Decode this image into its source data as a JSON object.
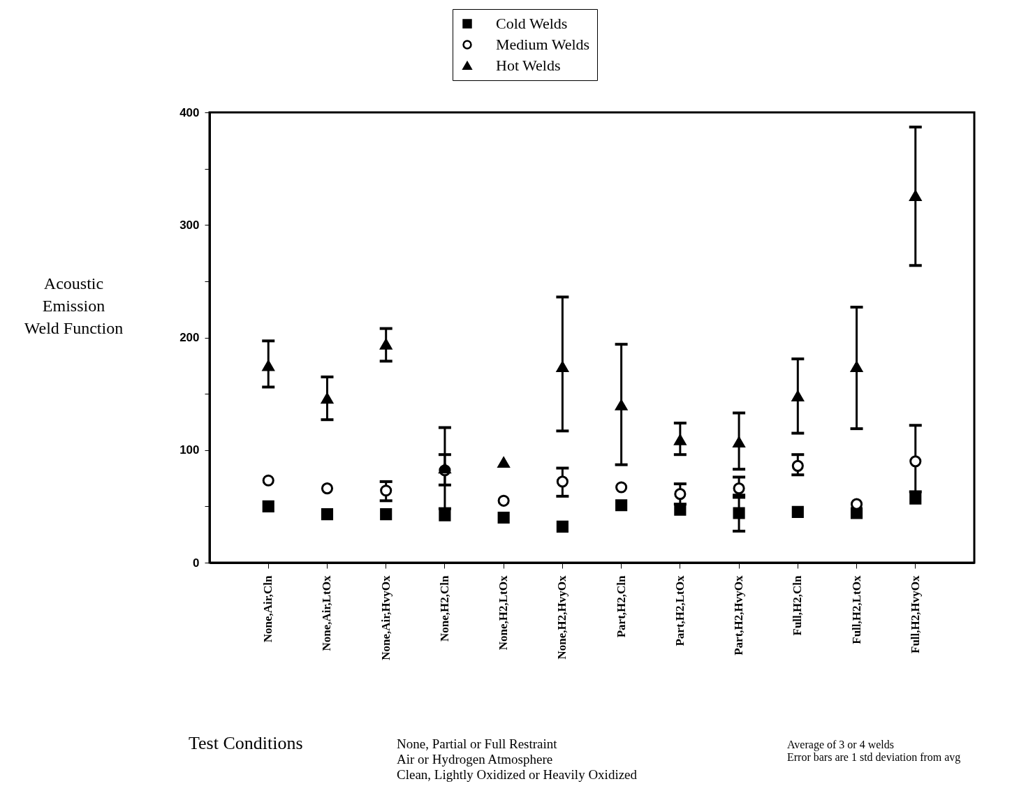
{
  "chart_data": {
    "type": "scatter",
    "ylabel": "Acoustic\nEmission\nWeld Function",
    "categories": [
      "None,Air,Cln",
      "None,Air,LtOx",
      "None,Air,HvyOx",
      "None,H2,Cln",
      "None,H2,LtOx",
      "None,H2,HvyOx",
      "Part,H2,Cln",
      "Part,H2,LtOx",
      "Part,H2,HvyOx",
      "Full,H2,Cln",
      "Full,H2,LtOx",
      "Full,H2,HvyOx"
    ],
    "series": [
      {
        "name": "Cold Welds",
        "color": "#000000",
        "marker": "square",
        "values": [
          50,
          43,
          43,
          42,
          40,
          32,
          51,
          47,
          44,
          45,
          44,
          57
        ],
        "errors": [
          null,
          null,
          null,
          null,
          null,
          null,
          null,
          null,
          [
            28,
            60
          ],
          null,
          null,
          null
        ]
      },
      {
        "name": "Medium Welds",
        "color": "#000000",
        "marker": "circle",
        "values": [
          73,
          66,
          64,
          82,
          55,
          72,
          67,
          61,
          66,
          86,
          52,
          90
        ],
        "errors": [
          null,
          null,
          [
            55,
            72
          ],
          [
            69,
            96
          ],
          null,
          [
            59,
            84
          ],
          null,
          [
            52,
            70
          ],
          [
            58,
            76
          ],
          [
            78,
            96
          ],
          null,
          [
            63,
            122
          ]
        ]
      },
      {
        "name": "Hot Welds",
        "color": "#000000",
        "marker": "triangle",
        "values": [
          175,
          146,
          194,
          84,
          89,
          174,
          140,
          109,
          107,
          148,
          174,
          326
        ],
        "errors": [
          [
            156,
            197
          ],
          [
            127,
            165
          ],
          [
            179,
            208
          ],
          [
            48,
            120
          ],
          null,
          [
            117,
            236
          ],
          [
            87,
            194
          ],
          [
            96,
            124
          ],
          [
            83,
            133
          ],
          [
            115,
            181
          ],
          [
            119,
            227
          ],
          [
            264,
            387
          ]
        ]
      }
    ],
    "ylim": [
      0,
      400
    ],
    "yticks": [
      0,
      {
        "value": 50,
        "label": null
      },
      100,
      {
        "value": 150,
        "label": null
      },
      200,
      {
        "value": 250,
        "label": null
      },
      300,
      {
        "value": 350,
        "label": null
      },
      400
    ],
    "grid": false,
    "legend": "top",
    "annotations": [
      "Test Conditions",
      "None, Partial or Full Restraint\nAir or Hydrogen Atmosphere\nClean, Lightly Oxidized or Heavily Oxidized",
      "Average of 3 or 4 welds\nError bars are 1 std deviation from avg"
    ]
  }
}
